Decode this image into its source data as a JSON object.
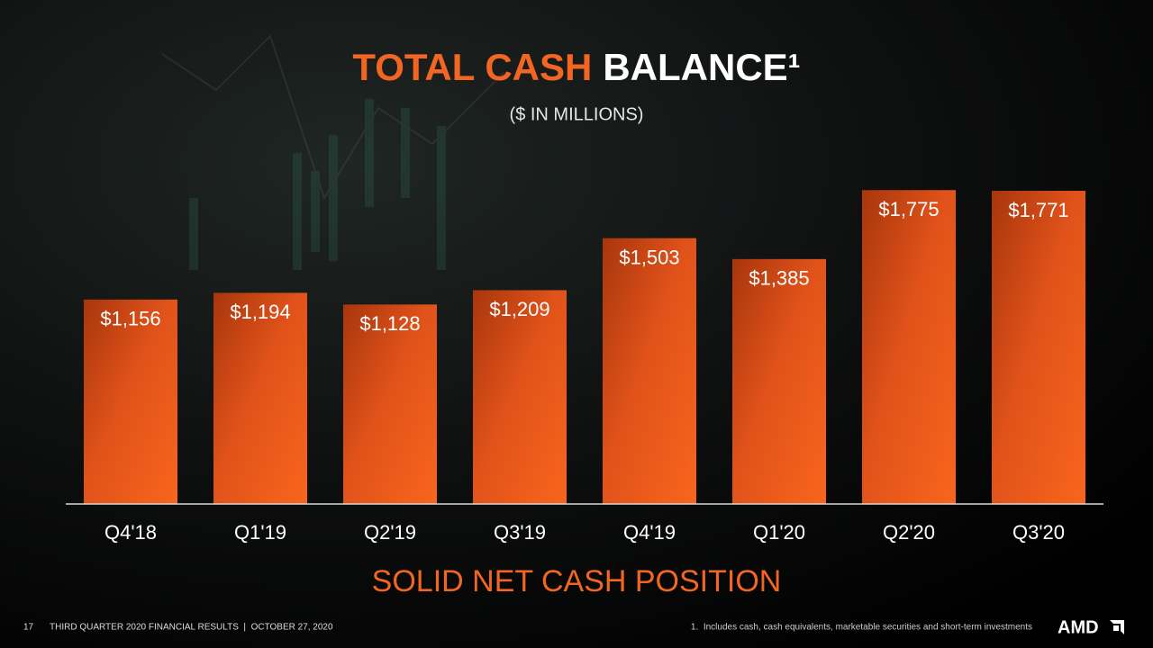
{
  "chart_data": {
    "type": "bar",
    "title_parts": [
      "TOTAL CASH",
      "BALANCE¹"
    ],
    "subtitle": "($ IN MILLIONS)",
    "categories": [
      "Q4'18",
      "Q1'19",
      "Q2'19",
      "Q3'19",
      "Q4'19",
      "Q1'20",
      "Q2'20",
      "Q3'20"
    ],
    "values": [
      1156,
      1194,
      1128,
      1209,
      1503,
      1385,
      1775,
      1771
    ],
    "value_labels": [
      "$1,156",
      "$1,194",
      "$1,128",
      "$1,209",
      "$1,503",
      "$1,385",
      "$1,775",
      "$1,771"
    ],
    "color": "#f26522",
    "ylim": [
      0,
      2000
    ],
    "annotation": "SOLID NET CASH POSITION"
  },
  "footer": {
    "page_number": "17",
    "text": "THIRD QUARTER 2020 FINANCIAL RESULTS  |  OCTOBER 27, 2020",
    "footnote": "1.  Includes cash, cash equivalents, marketable securities and short-term investments",
    "logo": "AMD"
  }
}
